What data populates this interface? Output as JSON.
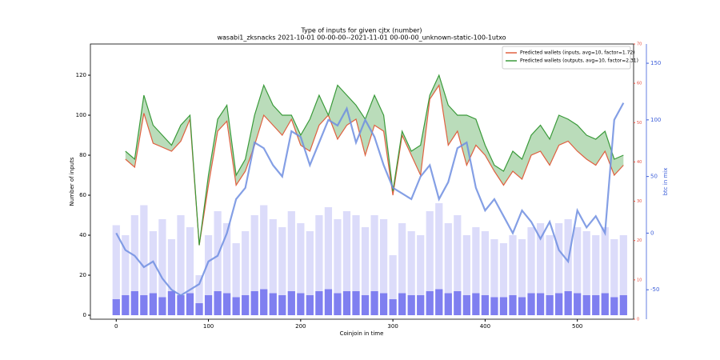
{
  "chart_data": {
    "type": "line",
    "title": "Type of inputs for given cjtx (number)",
    "subtitle": "wasabi1_zksnacks 2021-10-01 00-00-00--2021-11-01 00-00-00_unknown-static-100-1utxo",
    "xlabel": "Coinjoin in time",
    "ylabel": "Number of inputs",
    "y3label": "btc in mix",
    "xlim": [
      -28,
      561
    ],
    "xticks": [
      0,
      100,
      200,
      300,
      400,
      500
    ],
    "ylim": [
      -2,
      135.6
    ],
    "yticks": [
      0,
      20,
      40,
      60,
      80,
      100,
      120
    ],
    "y2lim": [
      0,
      70
    ],
    "y2ticks": [
      0,
      10,
      20,
      30,
      40,
      50,
      60,
      70
    ],
    "y3lim": [
      -76,
      167
    ],
    "y3ticks": [
      -50,
      0,
      50,
      100,
      150
    ],
    "legend": "upper right",
    "x": [
      0,
      10,
      20,
      30,
      40,
      50,
      60,
      70,
      80,
      90,
      100,
      110,
      120,
      130,
      140,
      150,
      160,
      170,
      180,
      190,
      200,
      210,
      220,
      230,
      240,
      250,
      260,
      270,
      280,
      290,
      300,
      310,
      320,
      330,
      340,
      350,
      360,
      370,
      380,
      390,
      400,
      410,
      420,
      430,
      440,
      450,
      460,
      470,
      480,
      490,
      500,
      510,
      520,
      530,
      540,
      550
    ],
    "series": [
      {
        "name": "Predicted wallets (inputs, avg=10, factor=1.72)",
        "color": "#e06040",
        "values": [
          null,
          78,
          74,
          101,
          86,
          84,
          82,
          87,
          98,
          35,
          65,
          92,
          97,
          65,
          72,
          85,
          100,
          95,
          90,
          98,
          85,
          82,
          95,
          100,
          88,
          95,
          98,
          80,
          95,
          92,
          60,
          90,
          80,
          70,
          108,
          115,
          85,
          92,
          75,
          85,
          80,
          72,
          65,
          72,
          68,
          80,
          82,
          75,
          85,
          87,
          82,
          78,
          75,
          82,
          70,
          75
        ]
      },
      {
        "name": "Predicted wallets (outputs, avg=10, factor=2.31)",
        "color": "#3a9a3a",
        "values": [
          null,
          82,
          78,
          110,
          95,
          90,
          85,
          95,
          100,
          35,
          70,
          98,
          105,
          70,
          78,
          100,
          115,
          105,
          100,
          100,
          90,
          98,
          110,
          100,
          115,
          110,
          105,
          98,
          110,
          100,
          62,
          92,
          82,
          85,
          110,
          120,
          105,
          100,
          100,
          98,
          85,
          75,
          72,
          82,
          78,
          90,
          95,
          88,
          100,
          98,
          95,
          90,
          88,
          92,
          78,
          80
        ]
      },
      {
        "color": "#6f8ee0",
        "axis": "y3",
        "values": [
          0,
          -15,
          -20,
          -30,
          -25,
          -40,
          -50,
          -55,
          -50,
          -45,
          -25,
          -20,
          0,
          30,
          40,
          80,
          75,
          60,
          50,
          90,
          85,
          60,
          80,
          100,
          95,
          110,
          80,
          100,
          85,
          60,
          40,
          35,
          30,
          50,
          60,
          30,
          45,
          75,
          80,
          40,
          20,
          30,
          15,
          0,
          20,
          10,
          -5,
          10,
          -15,
          -25,
          20,
          5,
          15,
          0,
          100,
          115
        ]
      },
      {
        "type": "bar",
        "color": "#dcdcfa",
        "values": [
          45,
          40,
          50,
          55,
          42,
          48,
          38,
          50,
          44,
          20,
          40,
          52,
          46,
          36,
          42,
          50,
          55,
          48,
          44,
          52,
          46,
          42,
          50,
          54,
          48,
          52,
          50,
          44,
          50,
          48,
          30,
          46,
          42,
          40,
          52,
          56,
          46,
          50,
          40,
          44,
          42,
          38,
          36,
          40,
          38,
          44,
          46,
          40,
          46,
          48,
          44,
          42,
          40,
          44,
          38,
          40
        ]
      },
      {
        "type": "bar",
        "color": "#7f7ff0",
        "values": [
          8,
          10,
          12,
          10,
          11,
          9,
          12,
          10,
          11,
          6,
          10,
          12,
          11,
          9,
          10,
          12,
          13,
          11,
          10,
          12,
          11,
          10,
          12,
          13,
          11,
          12,
          12,
          10,
          12,
          11,
          8,
          11,
          10,
          10,
          12,
          13,
          11,
          12,
          10,
          11,
          10,
          9,
          9,
          10,
          9,
          11,
          11,
          10,
          11,
          12,
          11,
          10,
          10,
          11,
          9,
          10
        ]
      }
    ]
  }
}
